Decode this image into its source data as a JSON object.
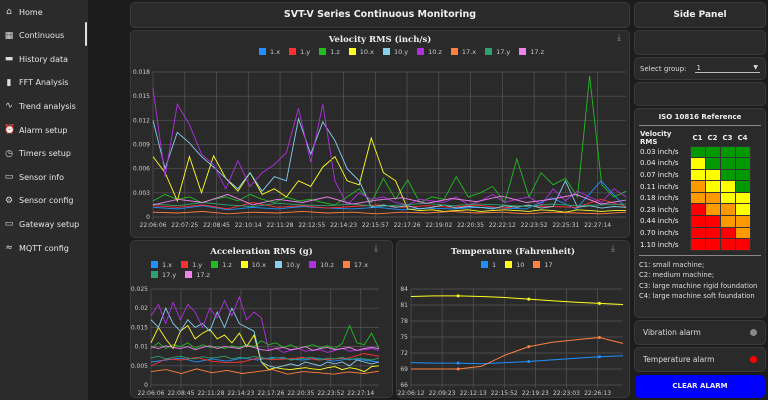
{
  "sidebar": {
    "items": [
      {
        "label": "Home",
        "icon": "home-icon",
        "glyph": "⌂"
      },
      {
        "label": "Continuous",
        "icon": "dashboard-icon",
        "glyph": "▦"
      },
      {
        "label": "History data",
        "icon": "folder-icon",
        "glyph": "▬"
      },
      {
        "label": "FFT Analysis",
        "icon": "bar-chart-icon",
        "glyph": "▮"
      },
      {
        "label": "Trend analysis",
        "icon": "trend-icon",
        "glyph": "∿"
      },
      {
        "label": "Alarm setup",
        "icon": "alarm-icon",
        "glyph": "⏰"
      },
      {
        "label": "Timers setup",
        "icon": "clock-icon",
        "glyph": "◷"
      },
      {
        "label": "Sensor info",
        "icon": "info-screen-icon",
        "glyph": "▭"
      },
      {
        "label": "Sensor config",
        "icon": "gear-icon",
        "glyph": "⚙"
      },
      {
        "label": "Gateway setup",
        "icon": "laptop-icon",
        "glyph": "▭"
      },
      {
        "label": "MQTT config",
        "icon": "wifi-icon",
        "glyph": "≈"
      }
    ]
  },
  "header": {
    "title": "SVT-V Series Continuous Monitoring"
  },
  "side": {
    "title": "Side Panel",
    "select_label": "Select group:",
    "select_value": "1",
    "iso": {
      "title": "ISO 10816 Reference",
      "col_header": "Velocity RMS",
      "cols": [
        "C1",
        "C2",
        "C3",
        "C4"
      ],
      "rows": [
        "0.03 inch/s",
        "0.04 inch/s",
        "0.07 inch/s",
        "0.11 inch/s",
        "0.18 inch/s",
        "0.28 inch/s",
        "0.44 inch/s",
        "0.70 inch/s",
        "1.10 inch/s"
      ],
      "grid": [
        [
          "g",
          "g",
          "g",
          "g"
        ],
        [
          "y",
          "g",
          "g",
          "g"
        ],
        [
          "y",
          "y",
          "g",
          "g"
        ],
        [
          "o",
          "y",
          "y",
          "g"
        ],
        [
          "o",
          "o",
          "y",
          "y"
        ],
        [
          "r",
          "o",
          "o",
          "y"
        ],
        [
          "r",
          "r",
          "o",
          "o"
        ],
        [
          "r",
          "r",
          "r",
          "o"
        ],
        [
          "r",
          "r",
          "r",
          "r"
        ]
      ],
      "colors": {
        "g": "#009900",
        "y": "#ffff00",
        "o": "#ff9900",
        "r": "#ff0000"
      },
      "notes": [
        "C1: small machine;",
        "C2: medium machine;",
        "C3: large machine rigid foundation",
        "C4: large machine soft foundation"
      ]
    },
    "vibration_alarm": {
      "label": "Vibration alarm",
      "color": "#888888"
    },
    "temperature_alarm": {
      "label": "Temperature alarm",
      "color": "#ff0000"
    },
    "clear_button": "CLEAR ALARM"
  },
  "chart_data": [
    {
      "type": "line",
      "title": "Velocity RMS (inch/s)",
      "ylim": [
        0,
        0.018
      ],
      "yticks": [
        "0",
        "0.003",
        "0.006",
        "0.009",
        "0.012",
        "0.015",
        "0.018"
      ],
      "grid": true,
      "legend": "top",
      "x_ticks": [
        "22:06:06",
        "22:07:25",
        "22:08:45",
        "22:10:14",
        "22:11:28",
        "22:12:55",
        "22:14:23",
        "22:15:57",
        "22:17:26",
        "22:19:02",
        "22:20:35",
        "22:22:12",
        "22:23:52",
        "22:25:31",
        "22:27:14"
      ],
      "series": [
        {
          "name": "1.x",
          "color": "#1e90ff",
          "values": [
            0.0012,
            0.001,
            0.0014,
            0.0009,
            0.0012,
            0.001,
            0.0013,
            0.0011,
            0.001,
            0.0012,
            0.0009,
            0.0011,
            0.001,
            0.0012,
            0.0011,
            0.001,
            0.0024,
            0.001,
            0.0045,
            0.0011
          ]
        },
        {
          "name": "1.y",
          "color": "#ff3030",
          "values": [
            0.0014,
            0.0012,
            0.0015,
            0.001,
            0.0018,
            0.0012,
            0.0014,
            0.0011,
            0.0013,
            0.0015,
            0.0012,
            0.0014,
            0.0012,
            0.0015,
            0.0011,
            0.0014,
            0.0013,
            0.0012,
            0.0022,
            0.0013
          ]
        },
        {
          "name": "1.z",
          "color": "#22bb22",
          "values": [
            0.002,
            0.0028,
            0.0022,
            0.0025,
            0.0018,
            0.0022,
            0.0025,
            0.002,
            0.0028,
            0.0022,
            0.0018,
            0.0025,
            0.002,
            0.0022,
            0.0018,
            0.0015,
            0.0025,
            0.0035,
            0.0018,
            0.0048,
            0.0022,
            0.0046,
            0.0018,
            0.0025,
            0.0022,
            0.005,
            0.0025,
            0.003,
            0.0038,
            0.0018,
            0.0072,
            0.0025,
            0.0055,
            0.004,
            0.0048,
            0.0025,
            0.0175,
            0.004,
            0.0025,
            0.0032
          ]
        },
        {
          "name": "10.x",
          "color": "#ffff22",
          "values": [
            0.0075,
            0.0055,
            0.002,
            0.0075,
            0.003,
            0.0076,
            0.0048,
            0.0032,
            0.0055,
            0.0028,
            0.0035,
            0.0025,
            0.0045,
            0.0038,
            0.0062,
            0.0075,
            0.0045,
            0.004,
            0.0098,
            0.0055,
            0.0045,
            0.001,
            0.0008,
            0.0009,
            0.0007,
            0.0008,
            0.0009,
            0.0007,
            0.0008,
            0.0009,
            0.0008,
            0.0007,
            0.0009,
            0.0008,
            0.0006,
            0.0009,
            0.0008,
            0.0007,
            0.0008,
            0.0008
          ]
        },
        {
          "name": "10.y",
          "color": "#87ceeb",
          "values": [
            0.012,
            0.006,
            0.0105,
            0.0092,
            0.0075,
            0.0062,
            0.0048,
            0.0035,
            0.0055,
            0.0032,
            0.005,
            0.0045,
            0.0122,
            0.0078,
            0.0118,
            0.0095,
            0.006,
            0.0045,
            0.0012,
            0.0015,
            0.0012,
            0.0014,
            0.001,
            0.0012,
            0.0015,
            0.0011,
            0.0013,
            0.0012,
            0.001,
            0.0014,
            0.0012,
            0.0015,
            0.0011,
            0.0013,
            0.0045,
            0.0012,
            0.0014,
            0.0011,
            0.0013,
            0.0012
          ]
        },
        {
          "name": "10.z",
          "color": "#b030e0",
          "values": [
            0.016,
            0.005,
            0.014,
            0.0115,
            0.0078,
            0.0065,
            0.0035,
            0.007,
            0.0038,
            0.0055,
            0.0065,
            0.008,
            0.0135,
            0.0068,
            0.014,
            0.0045,
            0.0015,
            0.003,
            0.0022,
            0.0025,
            0.0018,
            0.0015,
            0.0022,
            0.002,
            0.0018,
            0.0025,
            0.0015,
            0.002,
            0.0028,
            0.0018,
            0.0022,
            0.0025,
            0.0015,
            0.0035,
            0.002,
            0.0032,
            0.0025,
            0.0018,
            0.0035,
            0.0025
          ]
        },
        {
          "name": "17.x",
          "color": "#ff8040",
          "values": [
            0.0006,
            0.0005,
            0.0007,
            0.0004,
            0.0006,
            0.0005,
            0.0007,
            0.0005,
            0.0006,
            0.0004,
            0.0006,
            0.0005,
            0.0007,
            0.0005,
            0.0006,
            0.0004,
            0.0006,
            0.0005,
            0.0004,
            0.0006
          ]
        },
        {
          "name": "17.y",
          "color": "#30a070",
          "values": [
            0.0016,
            0.0014,
            0.0018,
            0.0015,
            0.0013,
            0.0017,
            0.0015,
            0.0014,
            0.0016,
            0.0013,
            0.0015,
            0.0017,
            0.0014,
            0.0016,
            0.0015,
            0.0013,
            0.0016,
            0.0014,
            0.0015,
            0.0016
          ]
        },
        {
          "name": "17.z",
          "color": "#ee82ee",
          "values": [
            0.0015,
            0.0022,
            0.0018,
            0.0028,
            0.0015,
            0.0022,
            0.0018,
            0.0025,
            0.0016,
            0.0021,
            0.0024,
            0.0017,
            0.0023,
            0.0019,
            0.0026,
            0.0018,
            0.0022,
            0.0028,
            0.0016,
            0.0021
          ]
        }
      ]
    },
    {
      "type": "line",
      "title": "Acceleration RMS (g)",
      "ylim": [
        0,
        0.025
      ],
      "yticks": [
        "0",
        "0.005",
        "0.01",
        "0.015",
        "0.02",
        "0.025"
      ],
      "grid": true,
      "legend": "top",
      "x_ticks": [
        "22:06:06",
        "22:08:45",
        "22:11:28",
        "22:14:23",
        "22:17:26",
        "22:20:35",
        "22:23:52",
        "22:27:14"
      ],
      "series": [
        {
          "name": "1.x",
          "color": "#1e90ff",
          "values": [
            0.006,
            0.0065,
            0.007,
            0.006,
            0.0068,
            0.0062,
            0.007,
            0.0065,
            0.0072,
            0.0068,
            0.0065,
            0.007,
            0.0062,
            0.0068,
            0.0065,
            0.006
          ]
        },
        {
          "name": "1.y",
          "color": "#ff3030",
          "values": [
            0.005,
            0.0068,
            0.0065,
            0.0072,
            0.0062,
            0.0058,
            0.006,
            0.007,
            0.0066,
            0.0068,
            0.0072,
            0.0065,
            0.0068,
            0.007,
            0.0082,
            0.0075
          ]
        },
        {
          "name": "1.z",
          "color": "#22bb22",
          "values": [
            0.0095,
            0.011,
            0.0095,
            0.0105,
            0.01,
            0.011,
            0.0095,
            0.0105,
            0.0098,
            0.01,
            0.0095,
            0.0102,
            0.0098,
            0.0105,
            0.01,
            0.0115,
            0.0105,
            0.011,
            0.0098,
            0.0105,
            0.0095,
            0.01,
            0.0105,
            0.0098,
            0.0102,
            0.0095,
            0.0108,
            0.0155,
            0.011,
            0.0105,
            0.0135,
            0.0095
          ]
        },
        {
          "name": "10.x",
          "color": "#ffff22",
          "values": [
            0.011,
            0.015,
            0.012,
            0.0095,
            0.014,
            0.0155,
            0.012,
            0.0135,
            0.0145,
            0.012,
            0.013,
            0.011,
            0.0135,
            0.01,
            0.013,
            0.006,
            0.004,
            0.0045,
            0.0042,
            0.004,
            0.0043,
            0.0045,
            0.0042,
            0.004,
            0.0045,
            0.0048,
            0.004,
            0.0045,
            0.0042,
            0.0035,
            0.0048,
            0.005
          ]
        },
        {
          "name": "10.y",
          "color": "#87ceeb",
          "values": [
            0.017,
            0.015,
            0.02,
            0.016,
            0.014,
            0.017,
            0.015,
            0.016,
            0.014,
            0.019,
            0.015,
            0.02,
            0.016,
            0.015,
            0.014,
            0.006,
            0.005,
            0.0045,
            0.005,
            0.0055,
            0.005,
            0.006,
            0.0055,
            0.005,
            0.006,
            0.0055,
            0.006,
            0.005,
            0.0065,
            0.006,
            0.0055,
            0.006
          ]
        },
        {
          "name": "10.z",
          "color": "#b030e0",
          "values": [
            0.018,
            0.021,
            0.016,
            0.0215,
            0.017,
            0.021,
            0.019,
            0.015,
            0.02,
            0.0175,
            0.022,
            0.018,
            0.023,
            0.017,
            0.019,
            0.0175,
            0.009,
            0.0095,
            0.0085,
            0.009,
            0.0095,
            0.0088,
            0.009,
            0.0092,
            0.0085,
            0.009,
            0.0095,
            0.0088,
            0.009,
            0.0092,
            0.0095,
            0.009
          ]
        },
        {
          "name": "17.x",
          "color": "#ff8040",
          "values": [
            0.0035,
            0.004,
            0.003,
            0.0042,
            0.0032,
            0.0038,
            0.003,
            0.0035,
            0.004,
            0.0028,
            0.0035,
            0.0032,
            0.0028,
            0.0034,
            0.003,
            0.0036
          ]
        },
        {
          "name": "17.y",
          "color": "#30a070",
          "values": [
            0.007,
            0.0075,
            0.0068,
            0.0072,
            0.0075,
            0.007,
            0.0068,
            0.0074,
            0.007,
            0.0072,
            0.0075,
            0.0068,
            0.0072,
            0.007,
            0.0074,
            0.0072,
            0.0068,
            0.007,
            0.0072,
            0.0065,
            0.0068,
            0.007,
            0.0072,
            0.0065,
            0.007,
            0.0068,
            0.0072,
            0.0065,
            0.007,
            0.0068,
            0.0065,
            0.007
          ]
        },
        {
          "name": "17.z",
          "color": "#ee82ee",
          "values": [
            0.01,
            0.0095,
            0.0102,
            0.0098,
            0.0095,
            0.01,
            0.0092,
            0.0098,
            0.0102,
            0.0095,
            0.01,
            0.0098,
            0.0095,
            0.0102,
            0.0098,
            0.0092,
            0.009,
            0.0095,
            0.0098,
            0.0092,
            0.0095,
            0.01,
            0.009,
            0.0095,
            0.0098,
            0.0092,
            0.0095,
            0.0098,
            0.009,
            0.0095,
            0.0098,
            0.0095
          ]
        }
      ]
    },
    {
      "type": "line",
      "title": "Temperature (Fahrenheit)",
      "ylim": [
        66,
        84
      ],
      "yticks": [
        "66",
        "69",
        "72",
        "75",
        "78",
        "81",
        "84"
      ],
      "grid": true,
      "legend": "top",
      "x_ticks": [
        "22:06:12",
        "22:09:23",
        "22:12:13",
        "22:15:52",
        "22:19:23",
        "22:23:03",
        "22:26:13"
      ],
      "series": [
        {
          "name": "1",
          "color": "#1e90ff",
          "values": [
            70.2,
            70.1,
            70.1,
            70.0,
            70.2,
            70.4,
            70.7,
            71.0,
            71.3,
            71.5
          ]
        },
        {
          "name": "10",
          "color": "#ffff22",
          "values": [
            82.6,
            82.7,
            82.7,
            82.6,
            82.4,
            82.1,
            81.8,
            81.5,
            81.3,
            81.1
          ]
        },
        {
          "name": "17",
          "color": "#ff8040",
          "values": [
            69.0,
            69.0,
            69.0,
            69.5,
            71.6,
            73.2,
            74.0,
            74.5,
            74.9,
            73.8
          ]
        }
      ]
    }
  ]
}
